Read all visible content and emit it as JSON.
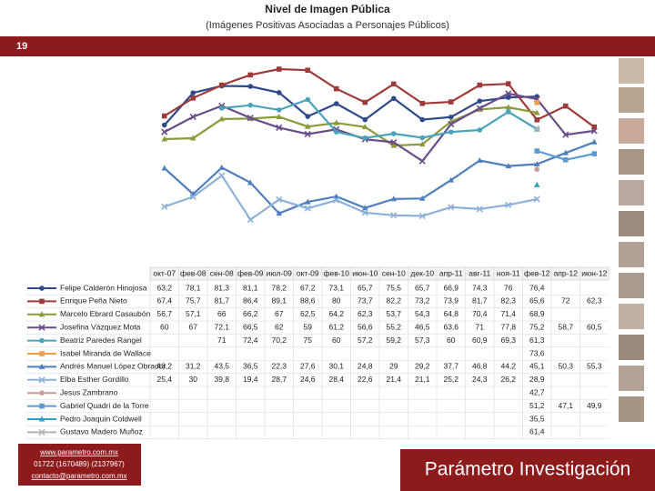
{
  "slide": {
    "number": "19",
    "footer_web": "www.parametro.com.mx",
    "footer_phone": "01722 (1670489) (2137967)",
    "footer_mail": "contacto@parametro.com.mx",
    "brand": "Parámetro Investigación"
  },
  "chart_data": {
    "type": "line",
    "title": "Nivel de Imagen Pública",
    "subtitle": "(Imágenes Positivas Asociadas a Personajes Públicos)",
    "categories": [
      "окт-07",
      "фев-08",
      "сен-08",
      "фев-09",
      "июл-09",
      "окт-09",
      "фев-10",
      "июн-10",
      "сен-10",
      "дек-10",
      "апр-11",
      "авг-11",
      "ноя-11",
      "фев-12",
      "апр-12",
      "июн-12"
    ],
    "ylim": [
      15,
      95
    ],
    "series": [
      {
        "name": "Felipe Calderón Hinojosa",
        "color": "#2e4a8b",
        "values": [
          63.2,
          78.1,
          81.3,
          81.1,
          78.2,
          67.2,
          73.1,
          65.7,
          75.5,
          65.7,
          66.9,
          74.3,
          76,
          76.4,
          null,
          null
        ],
        "value_labels": [
          "63,2",
          "78,1",
          "81,3",
          "81,1",
          "78,2",
          "67,2",
          "73,1",
          "65,7",
          "75,5",
          "65,7",
          "66,9",
          "74,3",
          "76",
          "76,4",
          null,
          null
        ]
      },
      {
        "name": "Enrique Peña Nieto",
        "color": "#9e3a38",
        "values": [
          67.4,
          75.7,
          81.7,
          86.4,
          89.1,
          88.6,
          80,
          73.7,
          82.2,
          73.2,
          73.9,
          81.7,
          82.3,
          65.6,
          72,
          62.3
        ],
        "value_labels": [
          "67,4",
          "75,7",
          "81,7",
          "86,4",
          "89,1",
          "88,6",
          "80",
          "73,7",
          "82,2",
          "73,2",
          "73,9",
          "81,7",
          "82,3",
          "65,6",
          "72",
          "62,3"
        ]
      },
      {
        "name": "Marcelo Ebrard Casaubón",
        "color": "#8c9a3b",
        "values": [
          56.7,
          57.1,
          66,
          66.2,
          67,
          62.5,
          64.2,
          62.3,
          53.7,
          54.3,
          64.8,
          70.4,
          71.4,
          68.9,
          null,
          null
        ],
        "value_labels": [
          "56,7",
          "57,1",
          "66",
          "66,2",
          "67",
          "62,5",
          "64,2",
          "62,3",
          "53,7",
          "54,3",
          "64,8",
          "70,4",
          "71,4",
          "68,9",
          null,
          null
        ]
      },
      {
        "name": "Josefina Vázquez Mota",
        "color": "#6b4d8a",
        "values": [
          60,
          67,
          72.1,
          66.5,
          62,
          59,
          61.2,
          56.6,
          55.2,
          46.5,
          63.6,
          71,
          77.8,
          75.2,
          58.7,
          60.5
        ],
        "value_labels": [
          "60",
          "67",
          "72,1",
          "66,5",
          "62",
          "59",
          "61,2",
          "56,6",
          "55,2",
          "46,5",
          "63,6",
          "71",
          "77,8",
          "75,2",
          "58,7",
          "60,5"
        ]
      },
      {
        "name": "Beatriz Paredes Rangel",
        "color": "#4aa3bd",
        "values": [
          null,
          null,
          71,
          72.4,
          70.2,
          75,
          60,
          57.2,
          59.2,
          57.3,
          60,
          60.9,
          69.3,
          61.3,
          null,
          null
        ],
        "value_labels": [
          null,
          null,
          "71",
          "72,4",
          "70,2",
          "75",
          "60",
          "57,2",
          "59,2",
          "57,3",
          "60",
          "60,9",
          "69,3",
          "61,3",
          null,
          null
        ]
      },
      {
        "name": "Isabel Miranda de Wallace",
        "color": "#f29d4a",
        "values": [
          null,
          null,
          null,
          null,
          null,
          null,
          null,
          null,
          null,
          null,
          null,
          null,
          null,
          73.6,
          null,
          null
        ],
        "value_labels": [
          null,
          null,
          null,
          null,
          null,
          null,
          null,
          null,
          null,
          null,
          null,
          null,
          null,
          "73,6",
          null,
          null
        ]
      },
      {
        "name": "Andrés Manuel López Obrador",
        "color": "#4f7fbd",
        "values": [
          43.2,
          31.2,
          43.5,
          36.5,
          22.3,
          27.6,
          30.1,
          24.8,
          29,
          29.2,
          37.7,
          46.8,
          44.2,
          45.1,
          50.3,
          55.3
        ],
        "value_labels": [
          "43,2",
          "31,2",
          "43,5",
          "36,5",
          "22,3",
          "27,6",
          "30,1",
          "24,8",
          "29",
          "29,2",
          "37,7",
          "46,8",
          "44,2",
          "45,1",
          "50,3",
          "55,3"
        ]
      },
      {
        "name": "Elba Esther Gordillo",
        "color": "#8fb1d9",
        "values": [
          25.4,
          30,
          39.8,
          19.4,
          28.7,
          24.6,
          28.4,
          22.6,
          21.4,
          21.1,
          25.2,
          24.3,
          26.2,
          28.9,
          null,
          null
        ],
        "value_labels": [
          "25,4",
          "30",
          "39,8",
          "19,4",
          "28,7",
          "24,6",
          "28,4",
          "22,6",
          "21,4",
          "21,1",
          "25,2",
          "24,3",
          "26,2",
          "28,9",
          null,
          null
        ]
      },
      {
        "name": "Jesus Zambrano",
        "color": "#c99c9b",
        "values": [
          null,
          null,
          null,
          null,
          null,
          null,
          null,
          null,
          null,
          null,
          null,
          null,
          null,
          42.7,
          null,
          null
        ],
        "value_labels": [
          null,
          null,
          null,
          null,
          null,
          null,
          null,
          null,
          null,
          null,
          null,
          null,
          null,
          "42,7",
          null,
          null
        ]
      },
      {
        "name": "Gabriel Quadri de la Torre",
        "color": "#5b9bd5",
        "values": [
          null,
          null,
          null,
          null,
          null,
          null,
          null,
          null,
          null,
          null,
          null,
          null,
          null,
          51.2,
          47.1,
          49.9
        ],
        "value_labels": [
          null,
          null,
          null,
          null,
          null,
          null,
          null,
          null,
          null,
          null,
          null,
          null,
          null,
          "51,2",
          "47,1",
          "49,9"
        ]
      },
      {
        "name": "Pedro Joaquín Coldwell",
        "color": "#2f9fc4",
        "values": [
          null,
          null,
          null,
          null,
          null,
          null,
          null,
          null,
          null,
          null,
          null,
          null,
          null,
          35.5,
          null,
          null
        ],
        "value_labels": [
          null,
          null,
          null,
          null,
          null,
          null,
          null,
          null,
          null,
          null,
          null,
          null,
          null,
          "35,5",
          null,
          null
        ]
      },
      {
        "name": "Gustavo Madero Muñoz",
        "color": "#b5b5b5",
        "values": [
          null,
          null,
          null,
          null,
          null,
          null,
          null,
          null,
          null,
          null,
          null,
          null,
          null,
          61.4,
          null,
          null
        ],
        "value_labels": [
          null,
          null,
          null,
          null,
          null,
          null,
          null,
          null,
          null,
          null,
          null,
          null,
          null,
          "61,4",
          null,
          null
        ]
      }
    ]
  }
}
